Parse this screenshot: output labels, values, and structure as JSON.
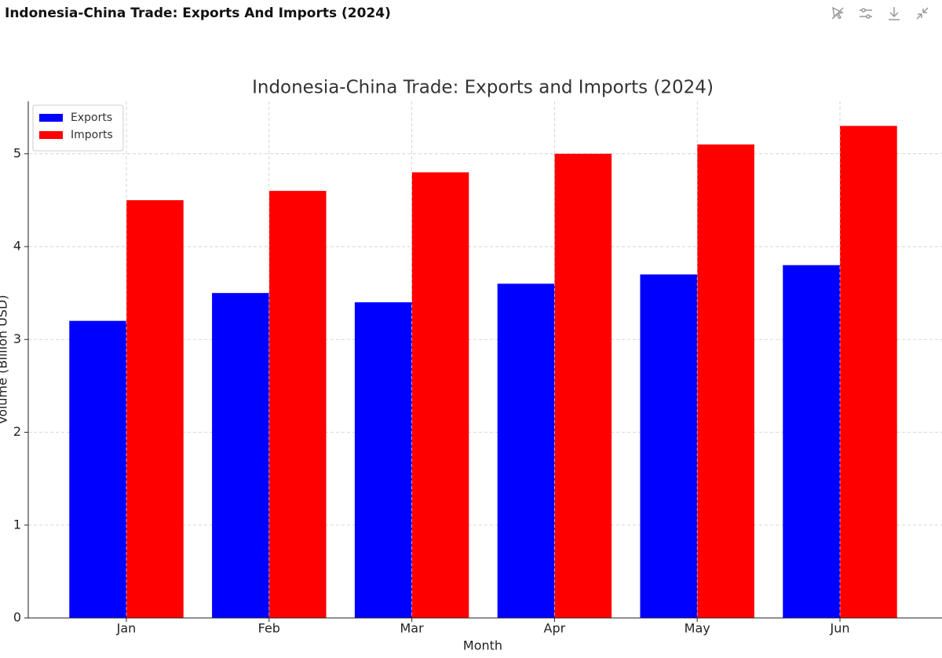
{
  "header": {
    "title": "Indonesia-China Trade: Exports And Imports (2024)"
  },
  "chart_data": {
    "type": "bar",
    "title": "Indonesia-China Trade: Exports and Imports (2024)",
    "x_label": "Month",
    "y_label": "Volume (Billion USD)",
    "categories": [
      "Jan",
      "Feb",
      "Mar",
      "Apr",
      "May",
      "Jun"
    ],
    "series": [
      {
        "name": "Exports",
        "color": "#0000ff",
        "values": [
          3.2,
          3.5,
          3.4,
          3.6,
          3.7,
          3.8
        ]
      },
      {
        "name": "Imports",
        "color": "#ff0000",
        "values": [
          4.5,
          4.6,
          4.8,
          5.0,
          5.1,
          5.3
        ]
      }
    ],
    "ylim": [
      0,
      5.565
    ],
    "yticks": [
      0,
      1,
      2,
      3,
      4,
      5
    ],
    "grid": true,
    "legend": "upper left"
  }
}
